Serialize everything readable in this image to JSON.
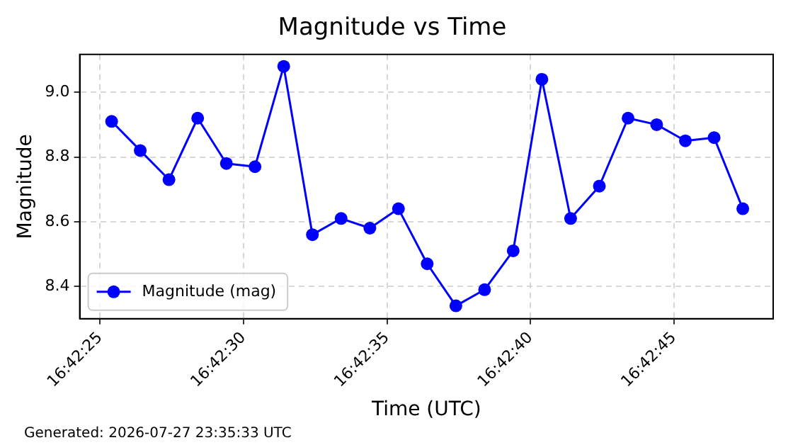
{
  "chart_data": {
    "type": "line",
    "title": "Magnitude vs Time",
    "xlabel": "Time (UTC)",
    "ylabel": "Magnitude",
    "x": [
      16.707056,
      16.707333,
      16.707611,
      16.707889,
      16.708167,
      16.708444,
      16.708722,
      16.709,
      16.709278,
      16.709556,
      16.709833,
      16.710111,
      16.710389,
      16.710667,
      16.710944,
      16.711222,
      16.7115,
      16.711778,
      16.712056,
      16.712333,
      16.712611,
      16.712889,
      16.713167
    ],
    "series": [
      {
        "name": "Magnitude (mag)",
        "color": "#0000ff",
        "values": [
          8.91,
          8.82,
          8.73,
          8.92,
          8.78,
          8.77,
          9.08,
          8.56,
          8.61,
          8.58,
          8.64,
          8.47,
          8.34,
          8.39,
          8.51,
          9.04,
          8.61,
          8.71,
          8.92,
          8.9,
          8.85,
          8.86,
          8.64
        ]
      }
    ],
    "xlim": [
      16.706747,
      16.713461
    ],
    "xticks": [
      {
        "value": 16.706944,
        "label": "16:42:25"
      },
      {
        "value": 16.708333,
        "label": "16:42:30"
      },
      {
        "value": 16.709722,
        "label": "16:42:35"
      },
      {
        "value": 16.711111,
        "label": "16:42:40"
      },
      {
        "value": 16.7125,
        "label": "16:42:45"
      }
    ],
    "ylim": [
      8.3,
      9.117
    ],
    "yticks": [
      8.4,
      8.6,
      8.8,
      {
        "value": 9,
        "label": "9.0"
      }
    ],
    "grid": true,
    "legend": "bottom left",
    "marker": "circle",
    "line_style": "solid",
    "annotations": [
      "Generated: 2026-07-27 23:35:33 UTC"
    ]
  }
}
